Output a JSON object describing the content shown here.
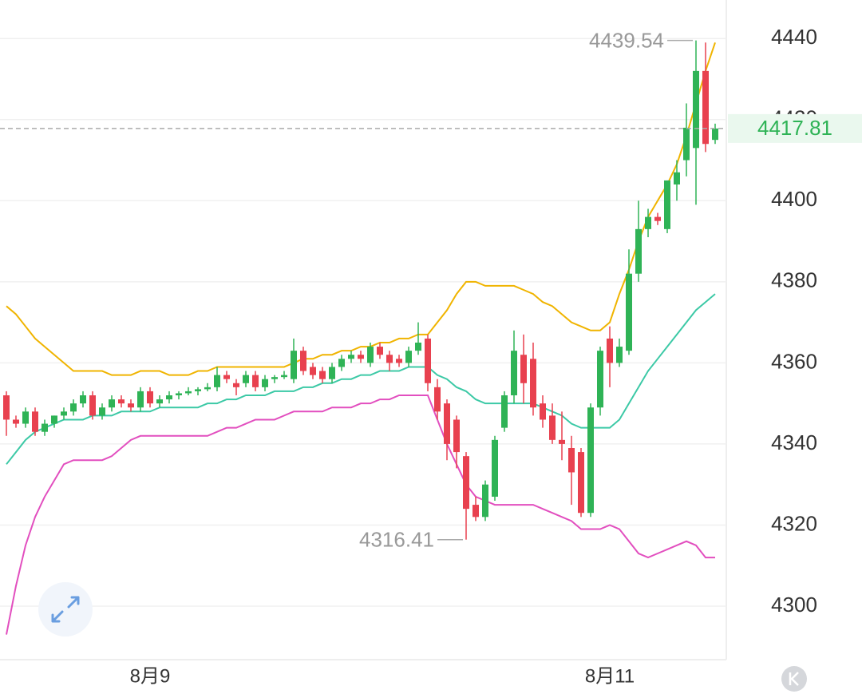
{
  "chart_data": {
    "type": "candlestick",
    "categories": [
      null,
      null,
      null,
      null,
      null,
      null,
      null,
      null,
      null,
      null,
      null,
      null,
      null,
      null,
      null,
      "8月9",
      null,
      null,
      null,
      null,
      null,
      null,
      null,
      null,
      null,
      null,
      null,
      null,
      null,
      null,
      null,
      null,
      null,
      null,
      null,
      null,
      null,
      null,
      null,
      null,
      null,
      null,
      null,
      null,
      null,
      null,
      null,
      null,
      null,
      null,
      null,
      null,
      null,
      null,
      null,
      null,
      null,
      null,
      null,
      null,
      null,
      null,
      null,
      "8月11",
      null,
      null,
      null,
      null,
      null,
      null,
      null,
      null,
      null,
      null,
      null
    ],
    "open": [
      4352,
      4346,
      4345,
      4348,
      4343,
      4345,
      4347,
      4348,
      4350,
      4352,
      4347,
      4349,
      4351,
      4350,
      4349,
      4353,
      4350,
      4351,
      4352,
      4352.5,
      4353,
      4353.5,
      4354,
      4357,
      4355,
      4355,
      4357,
      4354,
      4356,
      4356.5,
      4356,
      4363,
      4359,
      4358,
      4356,
      4359,
      4361,
      4362,
      4360,
      4364,
      4362,
      4361,
      4360,
      4363,
      4366,
      4354,
      4350,
      4346,
      4337,
      4325,
      4322,
      4327,
      4344,
      4352,
      4362,
      4361,
      4350,
      4347,
      4341,
      4339,
      4338,
      4323,
      4349,
      4366,
      4360,
      4363,
      4382,
      4393,
      4396,
      4393,
      4404,
      4410,
      4413,
      4432,
      4415
    ],
    "high": [
      4353,
      4347,
      4349,
      4349,
      4346,
      4347,
      4349,
      4351,
      4353,
      4353,
      4350,
      4352,
      4352,
      4351,
      4354,
      4354,
      4352,
      4353,
      4353,
      4354,
      4354,
      4355,
      4359,
      4358,
      4356,
      4358,
      4358,
      4357,
      4357,
      4358,
      4366,
      4364,
      4360,
      4359,
      4360,
      4362,
      4363,
      4363,
      4365,
      4365,
      4363,
      4362,
      4364,
      4370,
      4367,
      4356,
      4351,
      4347,
      4338,
      4327,
      4331,
      4342,
      4353,
      4368,
      4367,
      4365,
      4352,
      4350,
      4348,
      4342,
      4339,
      4350,
      4364,
      4369,
      4366,
      4388,
      4400,
      4398,
      4397,
      4405,
      4410,
      4424,
      4439.54,
      4439,
      4419
    ],
    "low": [
      4342,
      4344,
      4344,
      4342,
      4342,
      4344,
      4346,
      4347,
      4349,
      4346,
      4346,
      4348,
      4349,
      4348,
      4348,
      4349,
      4349,
      4350,
      4351,
      4352,
      4352,
      4353,
      4353,
      4355,
      4352,
      4354,
      4353,
      4353,
      4355,
      4356,
      4355,
      4357,
      4356,
      4355,
      4355,
      4358,
      4360,
      4360,
      4359,
      4361,
      4358,
      4359,
      4359,
      4362,
      4353,
      4346,
      4336,
      4334,
      4316.41,
      4321,
      4321,
      4326,
      4343,
      4350,
      4350,
      4347,
      4344,
      4340,
      4336,
      4325,
      4322,
      4322,
      4347,
      4354,
      4359,
      4362,
      4380,
      4391,
      4394,
      4392,
      4400,
      4406,
      4399,
      4412,
      4414
    ],
    "close": [
      4346,
      4345,
      4348,
      4343,
      4345,
      4347,
      4348,
      4350,
      4352,
      4347,
      4349,
      4351,
      4350,
      4349,
      4353,
      4350,
      4351,
      4352,
      4352.5,
      4353,
      4353.5,
      4354,
      4357,
      4356,
      4354,
      4357,
      4354,
      4356,
      4356.5,
      4357,
      4363,
      4358,
      4357,
      4356,
      4359,
      4361,
      4362,
      4361,
      4364,
      4362,
      4360,
      4360,
      4363,
      4365,
      4355,
      4348,
      4340,
      4338,
      4324,
      4322,
      4330,
      4341,
      4352,
      4363,
      4355,
      4349,
      4346,
      4341,
      4340,
      4333,
      4323,
      4349,
      4363,
      4360,
      4364,
      4382,
      4393,
      4396,
      4395,
      4405,
      4407,
      4418,
      4432,
      4414,
      4417.81
    ],
    "up_color": "#2fb356",
    "down_color": "#e8414f",
    "bands": [
      {
        "color": "#f0b400",
        "values": [
          4374,
          4372,
          4369,
          4366,
          4364,
          4362,
          4360,
          4358,
          4358,
          4358,
          4358,
          4357,
          4357,
          4357,
          4358,
          4358,
          4358,
          4357,
          4357,
          4357,
          4358,
          4358,
          4359,
          4359,
          4359,
          4359,
          4359,
          4359,
          4359,
          4359,
          4360,
          4361,
          4361,
          4362,
          4362,
          4363,
          4363,
          4364,
          4364,
          4365,
          4365,
          4366,
          4366,
          4367,
          4367,
          4370,
          4373,
          4377,
          4380,
          4380,
          4379,
          4379,
          4379,
          4379,
          4378,
          4377,
          4375,
          4374,
          4372,
          4370,
          4369,
          4368,
          4368,
          4370,
          4377,
          4383,
          4390,
          4396,
          4400,
          4404,
          4409,
          4416,
          4424,
          4432,
          4439
        ]
      },
      {
        "color": "#3cc9a6",
        "values": [
          4335,
          4338,
          4341,
          4343,
          4344,
          4345,
          4346,
          4346,
          4346,
          4347,
          4347,
          4347,
          4348,
          4348,
          4348,
          4348,
          4349,
          4349,
          4349,
          4349,
          4349,
          4350,
          4350,
          4351,
          4351,
          4352,
          4352,
          4352,
          4353,
          4353,
          4353,
          4354,
          4354,
          4355,
          4355,
          4356,
          4356,
          4357,
          4357,
          4358,
          4358,
          4358,
          4359,
          4359,
          4359,
          4357,
          4356,
          4354,
          4353,
          4351,
          4350,
          4350,
          4350,
          4350,
          4350,
          4350,
          4349,
          4348,
          4347,
          4345,
          4344,
          4344,
          4344,
          4344,
          4346,
          4350,
          4354,
          4358,
          4361,
          4364,
          4367,
          4370,
          4373,
          4375,
          4377
        ]
      },
      {
        "color": "#e24fbf",
        "values": [
          4293,
          4305,
          4315,
          4322,
          4327,
          4331,
          4335,
          4336,
          4336,
          4336,
          4336,
          4337,
          4339,
          4341,
          4342,
          4342,
          4342,
          4342,
          4342,
          4342,
          4342,
          4342,
          4343,
          4344,
          4344,
          4345,
          4346,
          4346,
          4346,
          4347,
          4348,
          4348,
          4348,
          4348,
          4349,
          4349,
          4349,
          4350,
          4350,
          4351,
          4351,
          4352,
          4352,
          4352,
          4352,
          4346,
          4340,
          4335,
          4330,
          4327,
          4326,
          4325,
          4325,
          4325,
          4325,
          4325,
          4324,
          4323,
          4322,
          4321,
          4319,
          4319,
          4319,
          4320,
          4319,
          4316,
          4313,
          4312,
          4313,
          4314,
          4315,
          4316,
          4315,
          4312,
          4312
        ]
      }
    ],
    "ylim": [
      4287,
      4449.5
    ],
    "yticks": [
      4300,
      4320,
      4340,
      4360,
      4380,
      4400,
      4420,
      4440
    ],
    "grid": true,
    "last_price": 4417.81,
    "max_label": "4439.54",
    "min_label": "4316.41"
  }
}
